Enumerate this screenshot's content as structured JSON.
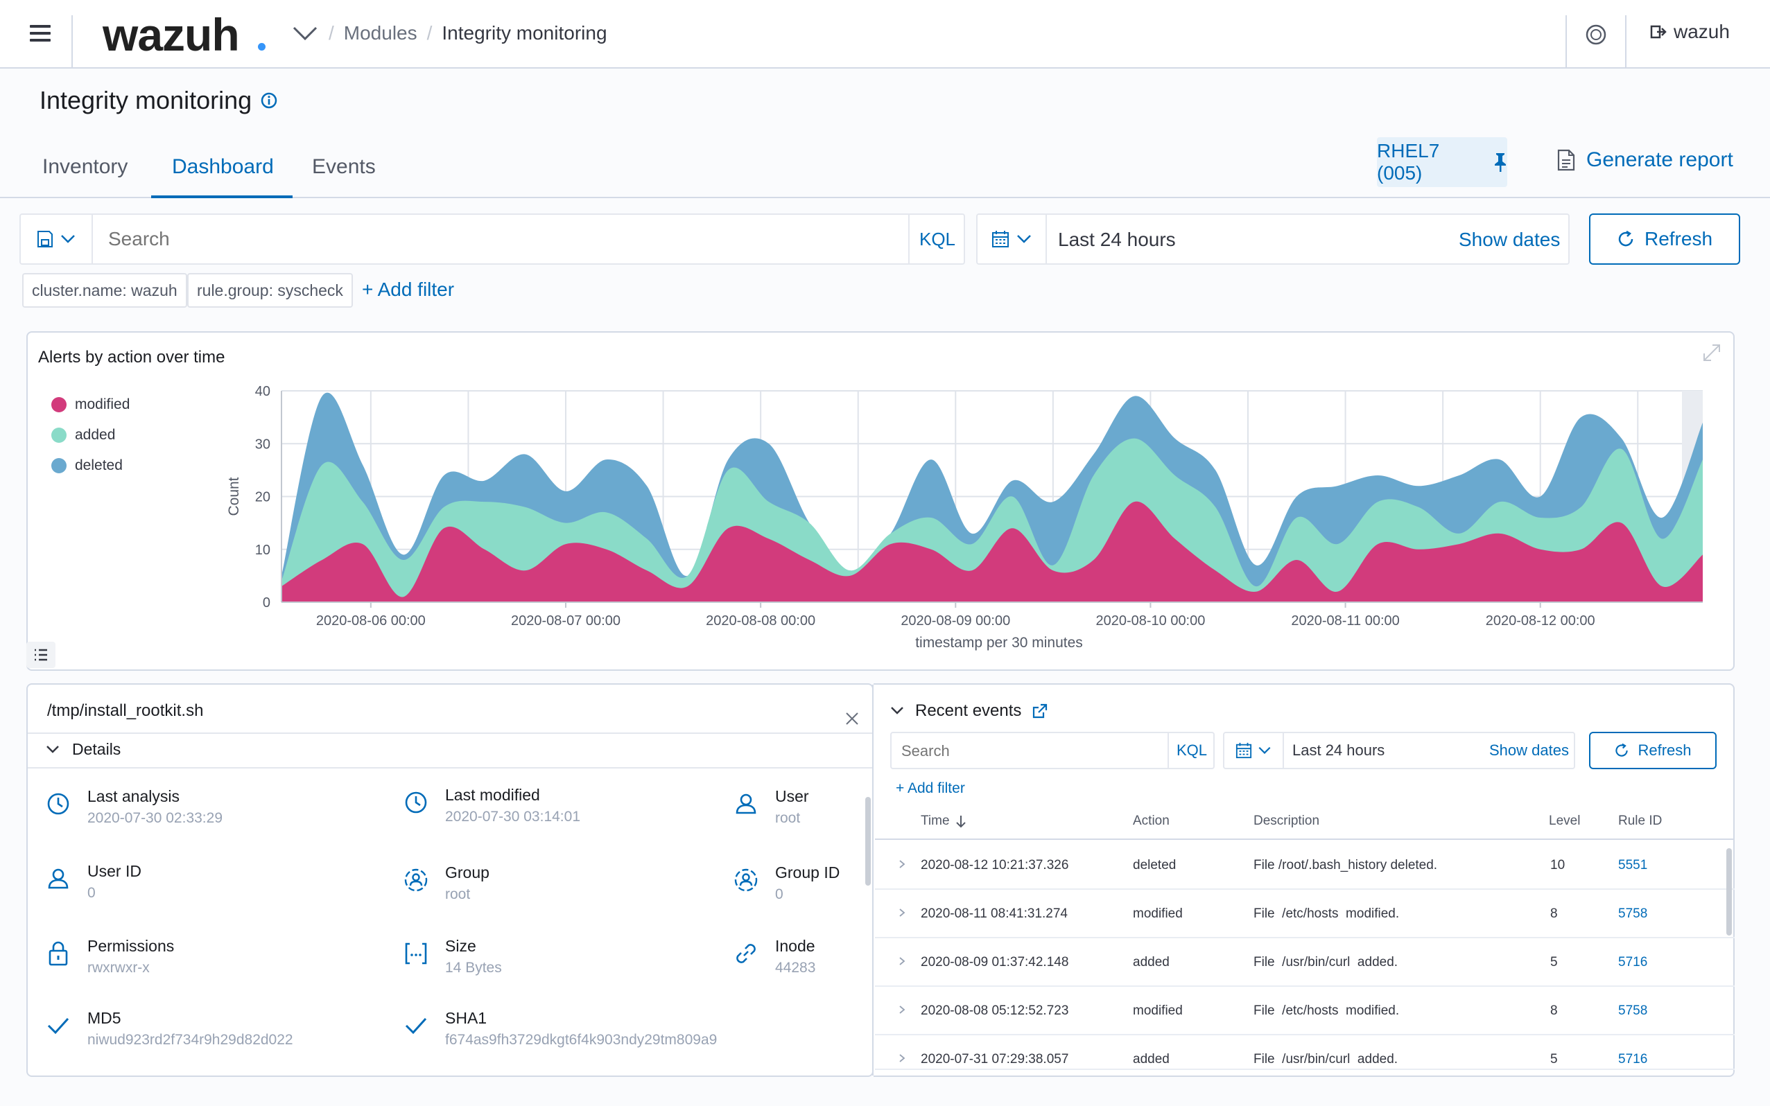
{
  "header": {
    "logo": "wazuh",
    "breadcrumb": [
      "Modules",
      "Integrity monitoring"
    ],
    "user": "wazuh"
  },
  "page": {
    "title": "Integrity monitoring",
    "tabs": [
      {
        "label": "Inventory",
        "active": false
      },
      {
        "label": "Dashboard",
        "active": true
      },
      {
        "label": "Events",
        "active": false
      }
    ],
    "agent": "RHEL7 (005)",
    "generate_report": "Generate report"
  },
  "search": {
    "placeholder": "Search",
    "kql": "KQL",
    "time_range": "Last 24 hours",
    "show_dates": "Show dates",
    "refresh": "Refresh",
    "filters": [
      "cluster.name: wazuh",
      "rule.group: syscheck"
    ],
    "add_filter": "+ Add filter"
  },
  "colors": {
    "modified": "#d23b7c",
    "added": "#8adbc8",
    "deleted": "#6aa9cf",
    "accent": "#006bb8"
  },
  "chart_data": {
    "type": "area",
    "stacked": true,
    "title": "Alerts by action over time",
    "xlabel": "timestamp per 30 minutes",
    "ylabel": "Count",
    "ylim": [
      0,
      40
    ],
    "yticks": [
      0,
      10,
      20,
      30,
      40
    ],
    "xticks": [
      "2020-08-06 00:00",
      "2020-08-07 00:00",
      "2020-08-08 00:00",
      "2020-08-09 00:00",
      "2020-08-10 00:00",
      "2020-08-11 00:00",
      "2020-08-12 00:00"
    ],
    "legend_position": "left",
    "x": [
      "2020-08-05 13:00",
      "2020-08-05 18:00",
      "2020-08-05 23:00",
      "2020-08-06 04:00",
      "2020-08-06 09:00",
      "2020-08-06 14:00",
      "2020-08-06 19:00",
      "2020-08-07 00:00",
      "2020-08-07 05:00",
      "2020-08-07 10:00",
      "2020-08-07 15:00",
      "2020-08-07 20:00",
      "2020-08-08 01:00",
      "2020-08-08 06:00",
      "2020-08-08 11:00",
      "2020-08-08 16:00",
      "2020-08-08 21:00",
      "2020-08-09 02:00",
      "2020-08-09 07:00",
      "2020-08-09 12:00",
      "2020-08-09 17:00",
      "2020-08-09 22:00",
      "2020-08-10 03:00",
      "2020-08-10 08:00",
      "2020-08-10 13:00",
      "2020-08-10 18:00",
      "2020-08-10 23:00",
      "2020-08-11 04:00",
      "2020-08-11 09:00",
      "2020-08-11 14:00",
      "2020-08-11 19:00",
      "2020-08-12 00:00",
      "2020-08-12 05:00",
      "2020-08-12 10:00",
      "2020-08-12 15:00",
      "2020-08-12 20:00"
    ],
    "series": [
      {
        "name": "modified",
        "values": [
          3,
          8,
          11,
          1,
          14,
          10,
          6,
          11,
          10,
          6,
          3,
          14,
          12,
          8,
          5,
          11,
          10,
          6,
          14,
          6,
          8,
          19,
          12,
          6,
          2,
          8,
          2,
          11,
          10,
          11,
          13,
          10,
          10,
          15,
          3,
          9
        ]
      },
      {
        "name": "added",
        "values": [
          1,
          18,
          8,
          7,
          4,
          9,
          12,
          4,
          7,
          6,
          2,
          11,
          7,
          7,
          1,
          2,
          6,
          5,
          6,
          1,
          16,
          12,
          12,
          12,
          1,
          8,
          9,
          8,
          8,
          2,
          6,
          6,
          8,
          14,
          9,
          18
        ]
      },
      {
        "name": "deleted",
        "values": [
          1,
          13,
          7,
          1,
          6,
          4,
          10,
          6,
          10,
          10,
          0,
          2,
          11,
          0,
          0,
          0,
          11,
          2,
          3,
          12,
          4,
          8,
          7,
          7,
          4,
          4,
          11,
          5,
          4,
          11,
          8,
          4,
          17,
          2,
          4,
          7
        ]
      }
    ]
  },
  "file_panel": {
    "path": "/tmp/install_rootkit.sh",
    "details_label": "Details",
    "fields": [
      {
        "icon": "clock-icon",
        "label": "Last analysis",
        "value": "2020-07-30 02:33:29"
      },
      {
        "icon": "clock-icon",
        "label": "Last modified",
        "value": "2020-07-30 03:14:01"
      },
      {
        "icon": "user-icon",
        "label": "User",
        "value": "root"
      },
      {
        "icon": "user-icon",
        "label": "User ID",
        "value": "0"
      },
      {
        "icon": "group-icon",
        "label": "Group",
        "value": "root"
      },
      {
        "icon": "group-icon",
        "label": "Group ID",
        "value": "0"
      },
      {
        "icon": "lock-icon",
        "label": "Permissions",
        "value": "rwxrwxr-x"
      },
      {
        "icon": "size-icon",
        "label": "Size",
        "value": "14 Bytes"
      },
      {
        "icon": "link-icon",
        "label": "Inode",
        "value": "44283"
      },
      {
        "icon": "check-icon",
        "label": "MD5",
        "value": "niwud923rd2f734r9h29d82d022"
      },
      {
        "icon": "check-icon",
        "label": "SHA1",
        "value": "f674as9fh3729dkgt6f4k903ndy29tm809a9"
      }
    ]
  },
  "recent_events": {
    "title": "Recent events",
    "search_placeholder": "Search",
    "kql": "KQL",
    "time_range": "Last 24 hours",
    "show_dates": "Show dates",
    "refresh": "Refresh",
    "add_filter": "+ Add filter",
    "columns": [
      "Time",
      "Action",
      "Description",
      "Level",
      "Rule ID"
    ],
    "rows": [
      {
        "time": "2020-08-12  10:21:37.326",
        "action": "deleted",
        "description": "File /root/.bash_history deleted.",
        "level": "10",
        "rule_id": "5551"
      },
      {
        "time": "2020-08-11  08:41:31.274",
        "action": "modified",
        "description": "File  /etc/hosts  modified.",
        "level": "8",
        "rule_id": "5758"
      },
      {
        "time": "2020-08-09  01:37:42.148",
        "action": "added",
        "description": "File  /usr/bin/curl  added.",
        "level": "5",
        "rule_id": "5716"
      },
      {
        "time": "2020-08-08  05:12:52.723",
        "action": "modified",
        "description": "File  /etc/hosts  modified.",
        "level": "8",
        "rule_id": "5758"
      },
      {
        "time": "2020-07-31  07:29:38.057",
        "action": "added",
        "description": "File  /usr/bin/curl  added.",
        "level": "5",
        "rule_id": "5716"
      }
    ]
  }
}
